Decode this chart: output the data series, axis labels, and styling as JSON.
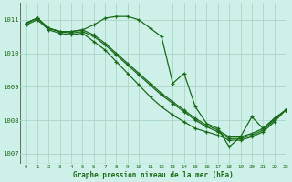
{
  "title": "Graphe pression niveau de la mer (hPa)",
  "background_color": "#cdf0e8",
  "plot_bg_color": "#cdf0e8",
  "grid_color": "#a8d8c8",
  "line_color": "#1a6b1a",
  "spine_color": "#667766",
  "xlim": [
    -0.5,
    23
  ],
  "ylim": [
    1006.7,
    1011.5
  ],
  "yticks": [
    1007,
    1008,
    1009,
    1010,
    1011
  ],
  "xticks": [
    0,
    1,
    2,
    3,
    4,
    5,
    6,
    7,
    8,
    9,
    10,
    11,
    12,
    13,
    14,
    15,
    16,
    17,
    18,
    19,
    20,
    21,
    22,
    23
  ],
  "series": [
    {
      "x": [
        0,
        1,
        2,
        3,
        4,
        5,
        6,
        7,
        8,
        9,
        10,
        11,
        12,
        13,
        14,
        15,
        16,
        17,
        18,
        19,
        20,
        21,
        22,
        23
      ],
      "y": [
        1010.9,
        1011.05,
        1010.75,
        1010.65,
        1010.65,
        1010.7,
        1010.85,
        1011.05,
        1011.1,
        1011.1,
        1011.0,
        1010.75,
        1010.5,
        1009.1,
        1009.4,
        1008.4,
        1007.9,
        1007.75,
        1007.2,
        1007.5,
        1008.1,
        1007.75,
        1008.05,
        1008.3
      ]
    },
    {
      "x": [
        0,
        1,
        2,
        3,
        4,
        5,
        6,
        7,
        8,
        9,
        10,
        11,
        12,
        13,
        14,
        15,
        16,
        17,
        18,
        19,
        20,
        21,
        22,
        23
      ],
      "y": [
        1010.9,
        1011.05,
        1010.75,
        1010.65,
        1010.65,
        1010.7,
        1010.55,
        1010.3,
        1010.0,
        1009.7,
        1009.4,
        1009.1,
        1008.8,
        1008.55,
        1008.3,
        1008.05,
        1007.85,
        1007.7,
        1007.5,
        1007.5,
        1007.6,
        1007.75,
        1008.05,
        1008.3
      ]
    },
    {
      "x": [
        0,
        1,
        2,
        3,
        4,
        5,
        6,
        7,
        8,
        9,
        10,
        11,
        12,
        13,
        14,
        15,
        16,
        17,
        18,
        19,
        20,
        21,
        22,
        23
      ],
      "y": [
        1010.9,
        1011.05,
        1010.75,
        1010.65,
        1010.6,
        1010.65,
        1010.5,
        1010.25,
        1009.95,
        1009.65,
        1009.35,
        1009.05,
        1008.75,
        1008.5,
        1008.25,
        1008.0,
        1007.8,
        1007.65,
        1007.45,
        1007.45,
        1007.55,
        1007.7,
        1008.0,
        1008.3
      ]
    },
    {
      "x": [
        0,
        1,
        2,
        3,
        4,
        5,
        6,
        7,
        8,
        9,
        10,
        11,
        12,
        13,
        14,
        15,
        16,
        17,
        18,
        19,
        20,
        21,
        22,
        23
      ],
      "y": [
        1010.85,
        1011.0,
        1010.7,
        1010.6,
        1010.55,
        1010.6,
        1010.35,
        1010.1,
        1009.75,
        1009.4,
        1009.05,
        1008.7,
        1008.4,
        1008.15,
        1007.95,
        1007.75,
        1007.65,
        1007.55,
        1007.4,
        1007.4,
        1007.5,
        1007.65,
        1007.95,
        1008.3
      ]
    }
  ]
}
